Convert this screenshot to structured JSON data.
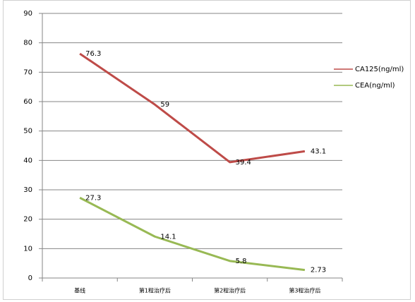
{
  "chart_data": {
    "type": "line",
    "categories": [
      "基线",
      "第1程治疗后",
      "第2程治疗后",
      "第3程治疗后"
    ],
    "series": [
      {
        "name": "CA125(ng/ml)",
        "color": "#be4b48",
        "values": [
          76.3,
          59,
          39.4,
          43.1
        ]
      },
      {
        "name": "CEA(ng/ml)",
        "color": "#98b954",
        "values": [
          27.3,
          14.1,
          5.8,
          2.73
        ]
      }
    ],
    "ylim": [
      0,
      90
    ],
    "yticks": [
      0,
      10,
      20,
      30,
      40,
      50,
      60,
      70,
      80,
      90
    ],
    "grid": true,
    "legend": "right"
  }
}
